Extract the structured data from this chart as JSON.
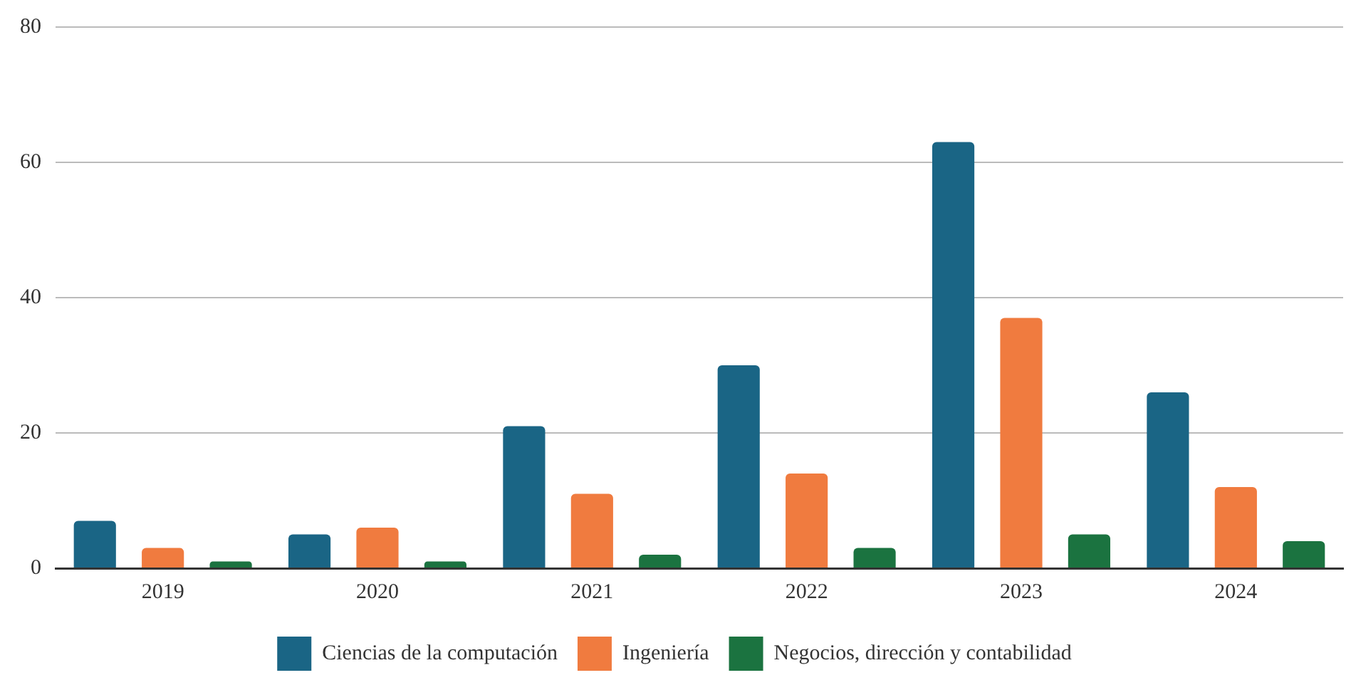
{
  "chart_data": {
    "type": "bar",
    "categories": [
      "2019",
      "2020",
      "2021",
      "2022",
      "2023",
      "2024"
    ],
    "series": [
      {
        "name": "Ciencias de la computación",
        "color": "#1a6585",
        "values": [
          7,
          5,
          21,
          30,
          63,
          26
        ]
      },
      {
        "name": "Ingeniería",
        "color": "#f07b3f",
        "values": [
          3,
          6,
          11,
          14,
          37,
          12
        ]
      },
      {
        "name": "Negocios, dirección y contabilidad",
        "color": "#1b7340",
        "values": [
          1,
          1,
          2,
          3,
          5,
          4
        ]
      }
    ],
    "ylim": [
      0,
      80
    ],
    "yticks": [
      0,
      20,
      40,
      60,
      80
    ],
    "grid": "y",
    "legend": "bottom"
  }
}
